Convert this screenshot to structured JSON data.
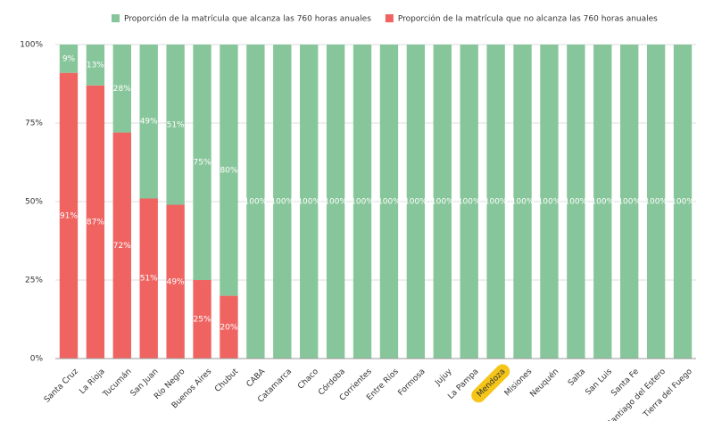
{
  "chart_data": {
    "type": "stacked_bar",
    "categories": [
      "Santa Cruz",
      "La Rioja",
      "Tucumán",
      "San Juan",
      "Río Negro",
      "Buenos Aires",
      "Chubut",
      "CABA",
      "Catamarca",
      "Chaco",
      "Córdoba",
      "Corrientes",
      "Entre Ríos",
      "Formosa",
      "Jujuy",
      "La Pampa",
      "Mendoza",
      "Misiones",
      "Neuquén",
      "Salta",
      "San Luis",
      "Santa Fe",
      "Santiago del Estero",
      "Tierra del Fuego"
    ],
    "series": [
      {
        "name": "Proporción de la matrícula que alcanza las 760 horas anuales",
        "color": "#87c69a",
        "values": [
          9,
          13,
          28,
          49,
          51,
          75,
          80,
          100,
          100,
          100,
          100,
          100,
          100,
          100,
          100,
          100,
          100,
          100,
          100,
          100,
          100,
          100,
          100,
          100
        ],
        "value_labels": [
          "9%",
          "13%",
          "28%",
          "49%",
          "51%",
          "75%",
          "80%",
          "100%",
          "100%",
          "100%",
          "100%",
          "100%",
          "100%",
          "100%",
          "100%",
          "100%",
          "100%",
          "100%",
          "100%",
          "100%",
          "100%",
          "100%",
          "100%",
          "100%"
        ]
      },
      {
        "name": "Proporción de la matrícula que no alcanza las 760 horas anuales",
        "color": "#ef6461",
        "values": [
          91,
          87,
          72,
          51,
          49,
          25,
          20,
          0,
          0,
          0,
          0,
          0,
          0,
          0,
          0,
          0,
          0,
          0,
          0,
          0,
          0,
          0,
          0,
          0
        ],
        "value_labels": [
          "91%",
          "87%",
          "72%",
          "51%",
          "49%",
          "25%",
          "20%",
          null,
          null,
          null,
          null,
          null,
          null,
          null,
          null,
          null,
          null,
          null,
          null,
          null,
          null,
          null,
          null,
          null
        ]
      }
    ],
    "ylim": [
      0,
      100
    ],
    "yticks": [
      {
        "value": 0,
        "label": "0%"
      },
      {
        "value": 25,
        "label": "25%"
      },
      {
        "value": 50,
        "label": "50%"
      },
      {
        "value": 75,
        "label": "75%"
      },
      {
        "value": 100,
        "label": "100%"
      }
    ],
    "grid": true,
    "legend": "top"
  }
}
